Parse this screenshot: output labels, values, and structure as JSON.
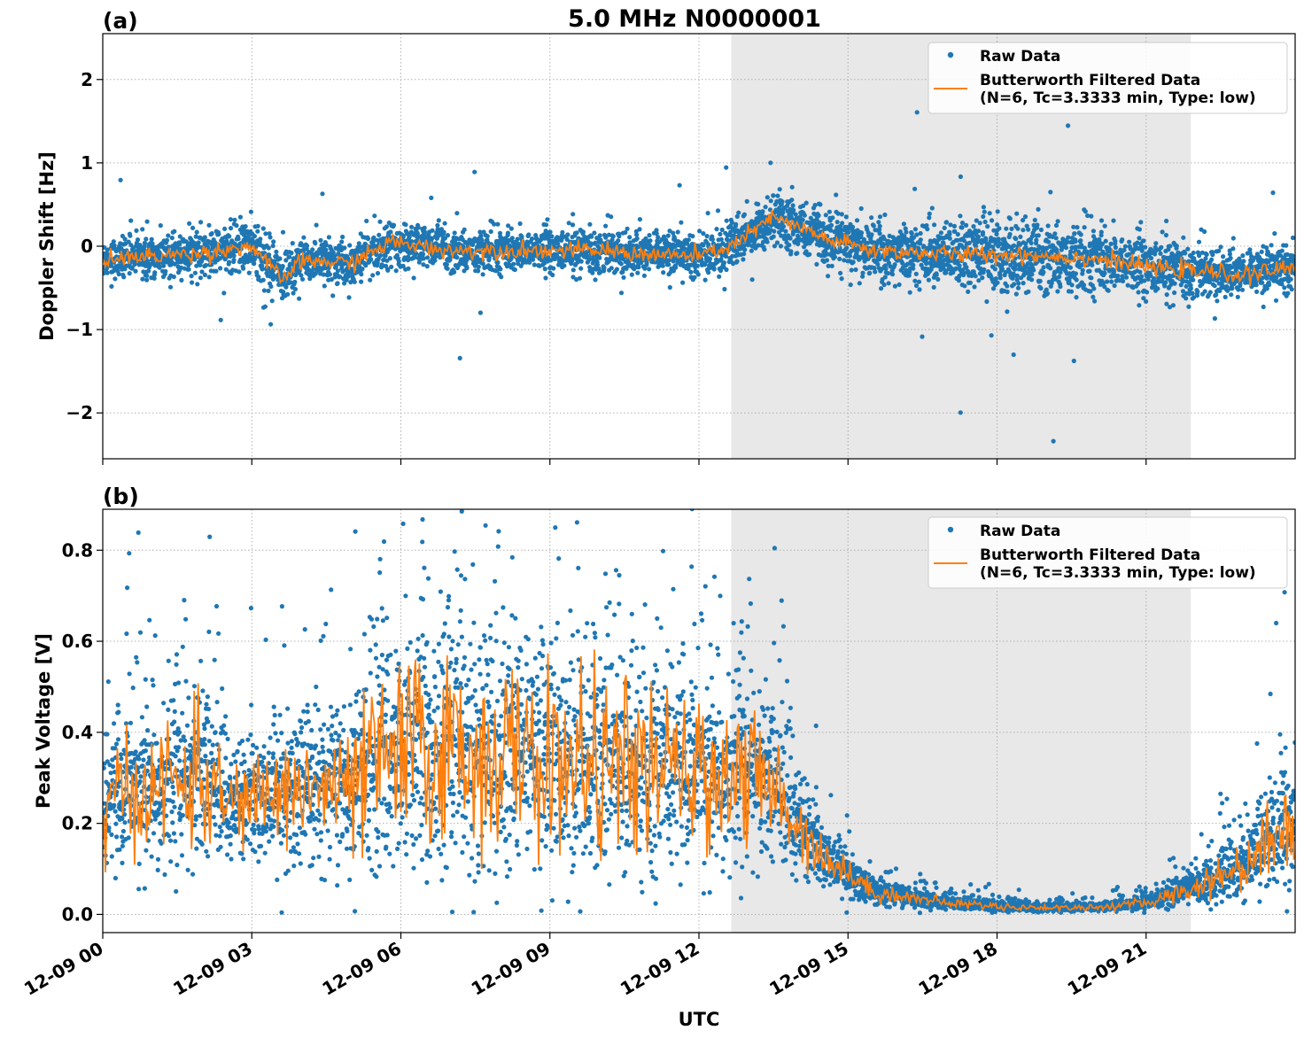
{
  "figure": {
    "title": "5.0 MHz N0000001",
    "xlabel": "UTC",
    "xticks": [
      "12-09 00",
      "12-09 03",
      "12-09 06",
      "12-09 09",
      "12-09 12",
      "12-09 15",
      "12-09 18",
      "12-09 21"
    ]
  },
  "chart_data": [
    {
      "type": "scatter",
      "panel_label": "(a)",
      "ylabel": "Doppler Shift [Hz]",
      "xlim_hours": [
        0,
        24
      ],
      "ylim": [
        -2.55,
        2.55
      ],
      "yticks": [
        {
          "value": 2,
          "label": "2"
        },
        {
          "value": 1,
          "label": "1"
        },
        {
          "value": 0,
          "label": "0"
        },
        {
          "value": -1,
          "label": "−1"
        },
        {
          "value": -2,
          "label": "−2"
        }
      ],
      "shaded_interval_hours": [
        12.65,
        21.9
      ],
      "grid": true,
      "legend_position": "top-right",
      "series": [
        {
          "name": "Raw Data",
          "kind": "scatter",
          "color": "#1f77b4",
          "envelope": {
            "x_hours": [
              0,
              1,
              2,
              3,
              3.6,
              4,
              5,
              5.8,
              7,
              9,
              10,
              11,
              12,
              12.65,
              13.5,
              14.5,
              15.5,
              17,
              18.5,
              20,
              21,
              22,
              23,
              24
            ],
            "center": [
              -0.15,
              -0.12,
              -0.08,
              0.0,
              -0.4,
              -0.18,
              -0.2,
              0.05,
              -0.05,
              -0.05,
              -0.05,
              -0.1,
              -0.12,
              0.0,
              0.35,
              0.1,
              -0.05,
              -0.1,
              -0.1,
              -0.15,
              -0.25,
              -0.3,
              -0.35,
              -0.25
            ],
            "spread": [
              0.22,
              0.22,
              0.25,
              0.3,
              0.35,
              0.25,
              0.25,
              0.25,
              0.25,
              0.25,
              0.25,
              0.25,
              0.25,
              0.3,
              0.3,
              0.3,
              0.35,
              0.4,
              0.45,
              0.4,
              0.35,
              0.3,
              0.25,
              0.3
            ]
          }
        },
        {
          "name": "Butterworth Filtered Data",
          "name_line2": "(N=6, Tc=3.3333 min, Type: low)",
          "kind": "line",
          "color": "#ff7f0e",
          "x_hours": [
            0,
            1,
            2,
            3,
            3.6,
            4,
            5,
            5.8,
            7,
            9,
            10,
            11,
            12,
            12.65,
            13.5,
            14.5,
            15.5,
            17,
            18.5,
            20,
            21,
            22,
            23,
            24
          ],
          "values": [
            -0.15,
            -0.12,
            -0.08,
            0.0,
            -0.4,
            -0.18,
            -0.2,
            0.05,
            -0.05,
            -0.05,
            -0.05,
            -0.1,
            -0.12,
            0.0,
            0.35,
            0.1,
            -0.05,
            -0.1,
            -0.1,
            -0.15,
            -0.25,
            -0.3,
            -0.35,
            -0.25
          ]
        }
      ]
    },
    {
      "type": "scatter",
      "panel_label": "(b)",
      "ylabel": "Peak Voltage [V]",
      "xlim_hours": [
        0,
        24
      ],
      "ylim": [
        -0.04,
        0.89
      ],
      "yticks": [
        {
          "value": 0.8,
          "label": "0.8"
        },
        {
          "value": 0.6,
          "label": "0.6"
        },
        {
          "value": 0.4,
          "label": "0.4"
        },
        {
          "value": 0.2,
          "label": "0.2"
        },
        {
          "value": 0.0,
          "label": "0.0"
        }
      ],
      "shaded_interval_hours": [
        12.65,
        21.9
      ],
      "grid": true,
      "legend_position": "top-right",
      "series": [
        {
          "name": "Raw Data",
          "kind": "scatter",
          "color": "#1f77b4",
          "envelope": {
            "x_hours": [
              0,
              1,
              2,
              2.5,
              4,
              5,
              5.5,
              6,
              7,
              8,
              9,
              10,
              11,
              12,
              12.8,
              13.6,
              14.5,
              15.5,
              17,
              18.5,
              20,
              21,
              22,
              23,
              24
            ],
            "center": [
              0.24,
              0.28,
              0.3,
              0.24,
              0.28,
              0.27,
              0.33,
              0.36,
              0.36,
              0.35,
              0.33,
              0.33,
              0.32,
              0.3,
              0.32,
              0.26,
              0.13,
              0.05,
              0.025,
              0.015,
              0.015,
              0.025,
              0.06,
              0.11,
              0.22
            ],
            "spread": [
              0.15,
              0.2,
              0.22,
              0.12,
              0.18,
              0.2,
              0.28,
              0.3,
              0.3,
              0.3,
              0.28,
              0.28,
              0.25,
              0.22,
              0.25,
              0.18,
              0.07,
              0.03,
              0.015,
              0.01,
              0.01,
              0.015,
              0.04,
              0.08,
              0.18
            ]
          }
        },
        {
          "name": "Butterworth Filtered Data",
          "name_line2": "(N=6, Tc=3.3333 min, Type: low)",
          "kind": "line",
          "color": "#ff7f0e",
          "x_hours": [
            0,
            1,
            2,
            2.5,
            4,
            5,
            5.5,
            6,
            7,
            8,
            9,
            10,
            11,
            12,
            12.8,
            13.6,
            14.5,
            15.5,
            17,
            18.5,
            20,
            21,
            22,
            23,
            24
          ],
          "values": [
            0.24,
            0.28,
            0.3,
            0.24,
            0.28,
            0.27,
            0.33,
            0.36,
            0.36,
            0.35,
            0.33,
            0.33,
            0.32,
            0.3,
            0.32,
            0.26,
            0.13,
            0.05,
            0.025,
            0.015,
            0.015,
            0.025,
            0.06,
            0.11,
            0.22
          ]
        }
      ]
    }
  ]
}
